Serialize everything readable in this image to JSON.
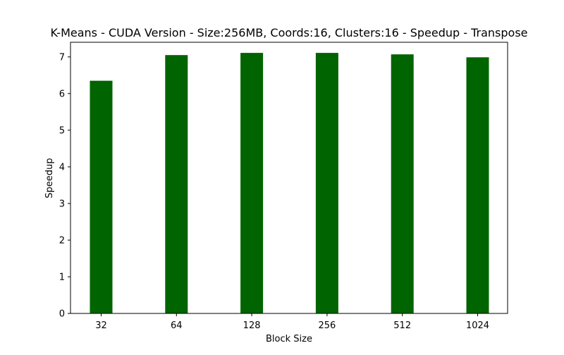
{
  "chart_data": {
    "type": "bar",
    "title": "K-Means - CUDA Version - Size:256MB, Coords:16, Clusters:16 - Speedup - Transpose",
    "xlabel": "Block Size",
    "ylabel": "Speedup",
    "categories": [
      "32",
      "64",
      "128",
      "256",
      "512",
      "1024"
    ],
    "values": [
      6.35,
      7.05,
      7.11,
      7.11,
      7.07,
      6.99
    ],
    "ylim": [
      0,
      7.4
    ],
    "yticks": [
      "0",
      "1",
      "2",
      "3",
      "4",
      "5",
      "6",
      "7"
    ],
    "bar_color": "#006400",
    "grid": false,
    "legend": "none"
  }
}
